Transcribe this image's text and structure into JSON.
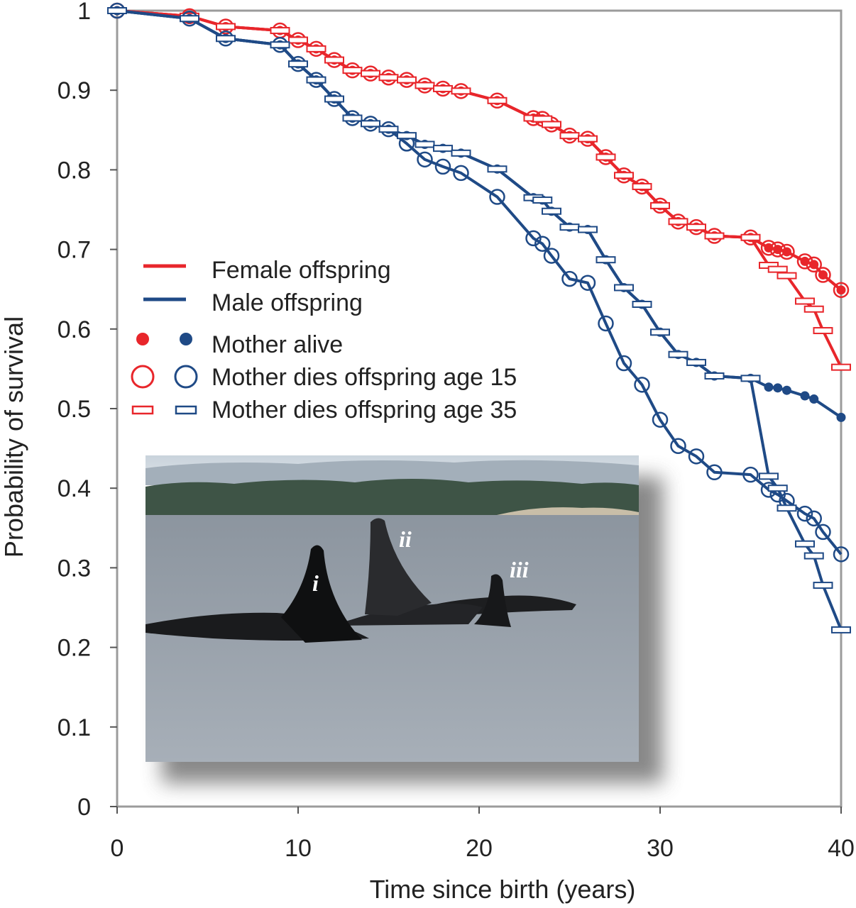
{
  "chart_data": {
    "type": "line",
    "xlabel": "Time since birth (years)",
    "ylabel": "Probability of survival",
    "xlim": [
      0,
      40
    ],
    "ylim": [
      0,
      1
    ],
    "x_ticks": [
      0,
      10,
      20,
      30,
      40
    ],
    "y_ticks": [
      0,
      0.1,
      0.2,
      0.3,
      0.4,
      0.5,
      0.6,
      0.7,
      0.8,
      0.9,
      1
    ],
    "x_tick_labels": [
      "0",
      "10",
      "20",
      "30",
      "40"
    ],
    "y_tick_labels": [
      "0",
      "0.1",
      "0.2",
      "0.3",
      "0.4",
      "0.5",
      "0.6",
      "0.7",
      "0.8",
      "0.9",
      "1"
    ],
    "grid": false,
    "legend_position": "left-middle",
    "colors": {
      "female": "#e8262b",
      "male": "#1f4a86"
    },
    "legend": {
      "female": "Female offspring",
      "male": "Male offspring",
      "alive": "Mother alive",
      "dies15": "Mother dies offspring age 15",
      "dies35": "Mother dies offspring age 35"
    },
    "inset_photo_labels": [
      "i",
      "ii",
      "iii"
    ],
    "series": [
      {
        "sex": "female",
        "marker": "dot",
        "x": [
          0,
          4,
          6,
          9,
          10,
          11,
          12,
          13,
          14,
          15,
          16,
          17,
          18,
          19,
          21,
          23,
          23.5,
          24,
          25,
          26,
          27,
          28,
          29,
          30,
          31,
          32,
          33,
          35,
          36,
          36.5,
          37,
          38,
          38.5,
          39,
          40
        ],
        "y": [
          1,
          0.993,
          0.98,
          0.975,
          0.963,
          0.952,
          0.938,
          0.925,
          0.921,
          0.916,
          0.913,
          0.906,
          0.902,
          0.899,
          0.887,
          0.865,
          0.864,
          0.857,
          0.843,
          0.839,
          0.816,
          0.793,
          0.779,
          0.755,
          0.735,
          0.728,
          0.717,
          0.715,
          0.702,
          0.7,
          0.697,
          0.685,
          0.681,
          0.668,
          0.649
        ]
      },
      {
        "sex": "female",
        "marker": "circle",
        "x": [
          0,
          4,
          6,
          9,
          10,
          11,
          12,
          13,
          14,
          15,
          16,
          17,
          18,
          19,
          21,
          23,
          23.5,
          24,
          25,
          26,
          27,
          28,
          29,
          30,
          31,
          32,
          33,
          35,
          36,
          36.5,
          37,
          38,
          38.5,
          39,
          40
        ],
        "y": [
          1,
          0.993,
          0.98,
          0.975,
          0.963,
          0.952,
          0.938,
          0.925,
          0.921,
          0.916,
          0.913,
          0.906,
          0.902,
          0.899,
          0.887,
          0.865,
          0.864,
          0.857,
          0.843,
          0.839,
          0.816,
          0.793,
          0.779,
          0.755,
          0.735,
          0.728,
          0.717,
          0.715,
          0.702,
          0.7,
          0.697,
          0.685,
          0.681,
          0.668,
          0.649
        ]
      },
      {
        "sex": "female",
        "marker": "bar",
        "x": [
          0,
          4,
          6,
          9,
          10,
          11,
          12,
          13,
          14,
          15,
          16,
          17,
          18,
          19,
          21,
          23,
          23.5,
          24,
          25,
          26,
          27,
          28,
          29,
          30,
          31,
          32,
          33,
          35,
          36,
          36.5,
          37,
          38,
          38.5,
          39,
          40
        ],
        "y": [
          1,
          0.993,
          0.98,
          0.975,
          0.963,
          0.952,
          0.938,
          0.925,
          0.921,
          0.916,
          0.913,
          0.906,
          0.902,
          0.899,
          0.887,
          0.865,
          0.864,
          0.857,
          0.843,
          0.839,
          0.816,
          0.793,
          0.779,
          0.755,
          0.735,
          0.728,
          0.717,
          0.715,
          0.68,
          0.675,
          0.667,
          0.635,
          0.625,
          0.598,
          0.552
        ]
      },
      {
        "sex": "male",
        "marker": "dot",
        "x": [
          0,
          4,
          6,
          9,
          10,
          11,
          12,
          13,
          14,
          15,
          16,
          17,
          18,
          19,
          21,
          23,
          23.5,
          24,
          25,
          26,
          27,
          28,
          29,
          30,
          31,
          32,
          33,
          35,
          36,
          36.5,
          37,
          38,
          38.5,
          40
        ],
        "y": [
          1,
          0.99,
          0.965,
          0.957,
          0.933,
          0.913,
          0.889,
          0.865,
          0.858,
          0.851,
          0.843,
          0.832,
          0.827,
          0.821,
          0.801,
          0.765,
          0.762,
          0.748,
          0.728,
          0.725,
          0.687,
          0.652,
          0.631,
          0.596,
          0.568,
          0.558,
          0.541,
          0.538,
          0.527,
          0.526,
          0.523,
          0.516,
          0.512,
          0.489
        ]
      },
      {
        "sex": "male",
        "marker": "circle",
        "x": [
          0,
          4,
          6,
          9,
          10,
          11,
          12,
          13,
          14,
          15,
          16,
          17,
          18,
          19,
          21,
          23,
          23.5,
          24,
          25,
          26,
          27,
          28,
          29,
          30,
          31,
          32,
          33,
          35,
          36,
          36.5,
          37,
          38,
          38.5,
          39,
          40
        ],
        "y": [
          1,
          0.99,
          0.965,
          0.957,
          0.933,
          0.913,
          0.889,
          0.865,
          0.858,
          0.851,
          0.833,
          0.813,
          0.804,
          0.796,
          0.766,
          0.714,
          0.707,
          0.692,
          0.663,
          0.658,
          0.607,
          0.557,
          0.53,
          0.486,
          0.453,
          0.44,
          0.42,
          0.417,
          0.398,
          0.392,
          0.384,
          0.368,
          0.362,
          0.345,
          0.317
        ]
      },
      {
        "sex": "male",
        "marker": "bar",
        "x": [
          0,
          4,
          6,
          9,
          10,
          11,
          12,
          13,
          14,
          15,
          16,
          17,
          18,
          19,
          21,
          23,
          23.5,
          24,
          25,
          26,
          27,
          28,
          29,
          30,
          31,
          32,
          33,
          35,
          36,
          36.5,
          37,
          38,
          38.5,
          39,
          40
        ],
        "y": [
          1,
          0.99,
          0.965,
          0.957,
          0.933,
          0.913,
          0.889,
          0.865,
          0.858,
          0.851,
          0.843,
          0.832,
          0.827,
          0.821,
          0.801,
          0.765,
          0.762,
          0.748,
          0.728,
          0.725,
          0.687,
          0.652,
          0.631,
          0.596,
          0.568,
          0.558,
          0.541,
          0.538,
          0.415,
          0.4,
          0.375,
          0.33,
          0.315,
          0.278,
          0.222
        ]
      }
    ]
  }
}
